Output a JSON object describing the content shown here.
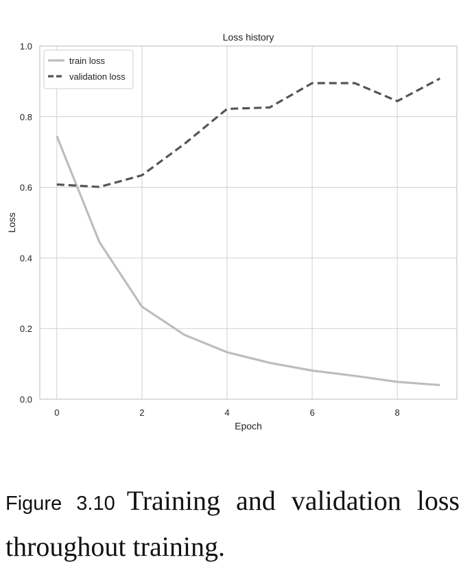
{
  "chart_data": {
    "type": "line",
    "title": "Loss history",
    "xlabel": "Epoch",
    "ylabel": "Loss",
    "xlim": [
      -0.4,
      9.4
    ],
    "ylim": [
      0.0,
      1.0
    ],
    "xticks": [
      0,
      2,
      4,
      6,
      8
    ],
    "xtick_labels": [
      "0",
      "2",
      "4",
      "6",
      "8"
    ],
    "yticks": [
      0.0,
      0.2,
      0.4,
      0.6,
      0.8,
      1.0
    ],
    "ytick_labels": [
      "0.0",
      "0.2",
      "0.4",
      "0.6",
      "0.8",
      "1.0"
    ],
    "grid": true,
    "legend_position": "top-left",
    "x": [
      0,
      1,
      2,
      3,
      4,
      5,
      6,
      7,
      8,
      9
    ],
    "series": [
      {
        "name": "train loss",
        "values": [
          0.745,
          0.445,
          0.262,
          0.182,
          0.133,
          0.103,
          0.081,
          0.066,
          0.049,
          0.04
        ],
        "color": "#bdbdbd",
        "style": "solid"
      },
      {
        "name": "validation loss",
        "values": [
          0.608,
          0.601,
          0.634,
          0.723,
          0.822,
          0.826,
          0.895,
          0.895,
          0.844,
          0.908
        ],
        "color": "#555555",
        "style": "dashed"
      }
    ]
  },
  "caption": {
    "label": "Figure 3.10",
    "text": "Training and validation loss throughout training."
  }
}
